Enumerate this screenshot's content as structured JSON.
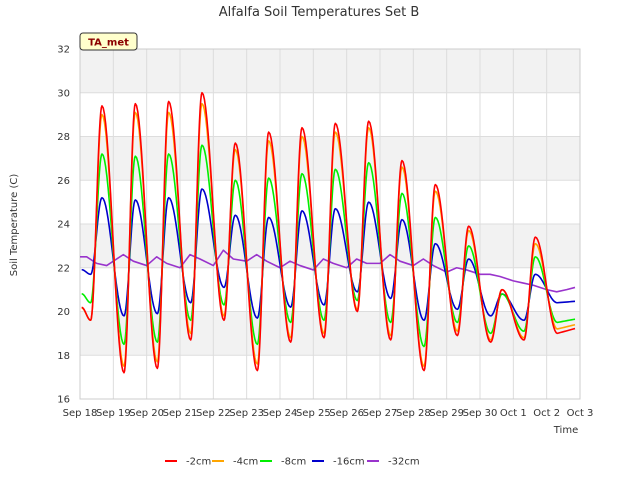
{
  "chart_data": {
    "type": "line",
    "title": "Alfalfa Soil Temperatures Set B",
    "xlabel": "Time",
    "ylabel": "Soil Temperature (C)",
    "badge": "TA_met",
    "ylim": [
      16,
      32
    ],
    "yticks": [
      16,
      18,
      20,
      22,
      24,
      26,
      28,
      30,
      32
    ],
    "xlim_days": [
      0,
      15
    ],
    "xtick_labels": [
      "Sep 18",
      "Sep 19",
      "Sep 20",
      "Sep 21",
      "Sep 22",
      "Sep 23",
      "Sep 24",
      "Sep 25",
      "Sep 26",
      "Sep 27",
      "Sep 28",
      "Sep 29",
      "Sep 30",
      "Oct 1",
      "Oct 2",
      "Oct 3"
    ],
    "grid": true,
    "legend_position": "bottom",
    "series": [
      {
        "name": "-2cm",
        "color": "#ff0000",
        "min": [
          19.6,
          17.2,
          17.4,
          18.7,
          19.6,
          17.3,
          18.6,
          18.8,
          20.0,
          18.7,
          17.3,
          18.9,
          18.6,
          18.7,
          19.0
        ],
        "max": [
          29.4,
          29.5,
          29.6,
          30.0,
          27.7,
          28.2,
          28.4,
          28.6,
          28.7,
          26.9,
          25.8,
          23.9,
          21.0,
          23.4
        ]
      },
      {
        "name": "-4cm",
        "color": "#ffa500",
        "min": [
          19.6,
          17.5,
          17.7,
          19.0,
          19.8,
          17.6,
          18.8,
          19.0,
          20.1,
          18.9,
          17.5,
          19.1,
          18.7,
          18.8,
          19.2
        ],
        "max": [
          29.0,
          29.1,
          29.1,
          29.5,
          27.4,
          27.8,
          28.0,
          28.2,
          28.4,
          26.6,
          25.5,
          23.7,
          21.0,
          23.1
        ]
      },
      {
        "name": "-8cm",
        "color": "#00ee00",
        "min": [
          20.4,
          18.5,
          18.6,
          19.6,
          20.3,
          18.5,
          19.5,
          19.6,
          20.5,
          19.5,
          18.4,
          19.5,
          19.0,
          19.1,
          19.5
        ],
        "max": [
          27.2,
          27.1,
          27.2,
          27.6,
          26.0,
          26.1,
          26.3,
          26.5,
          26.8,
          25.4,
          24.3,
          23.0,
          20.8,
          22.5
        ]
      },
      {
        "name": "-16cm",
        "color": "#0000cc",
        "min": [
          21.7,
          19.8,
          19.9,
          20.4,
          21.1,
          19.7,
          20.2,
          20.3,
          20.9,
          20.6,
          19.6,
          20.1,
          19.8,
          19.6,
          20.4
        ],
        "max": [
          25.2,
          25.1,
          25.2,
          25.6,
          24.4,
          24.3,
          24.6,
          24.7,
          25.0,
          24.2,
          23.1,
          22.4,
          20.8,
          21.7
        ]
      },
      {
        "name": "-32cm",
        "color": "#9933cc",
        "x": [
          0.0,
          0.2,
          0.5,
          0.8,
          1.3,
          1.6,
          2.0,
          2.3,
          2.6,
          3.0,
          3.3,
          3.6,
          4.0,
          4.3,
          4.6,
          5.0,
          5.3,
          5.6,
          6.0,
          6.3,
          6.6,
          7.0,
          7.3,
          7.6,
          8.0,
          8.3,
          8.6,
          9.0,
          9.3,
          9.6,
          10.0,
          10.3,
          10.6,
          11.0,
          11.3,
          11.6,
          12.0,
          12.3,
          12.6,
          13.0,
          13.3,
          13.6,
          14.0,
          14.3,
          14.6,
          14.85
        ],
        "values": [
          22.5,
          22.5,
          22.2,
          22.1,
          22.6,
          22.3,
          22.1,
          22.5,
          22.2,
          22.0,
          22.6,
          22.4,
          22.1,
          22.8,
          22.4,
          22.3,
          22.6,
          22.3,
          22.0,
          22.3,
          22.1,
          21.9,
          22.4,
          22.2,
          22.0,
          22.4,
          22.2,
          22.2,
          22.6,
          22.3,
          22.1,
          22.4,
          22.1,
          21.8,
          22.0,
          21.9,
          21.7,
          21.7,
          21.6,
          21.4,
          21.3,
          21.2,
          21.0,
          20.9,
          21.0,
          21.1
        ]
      }
    ]
  }
}
